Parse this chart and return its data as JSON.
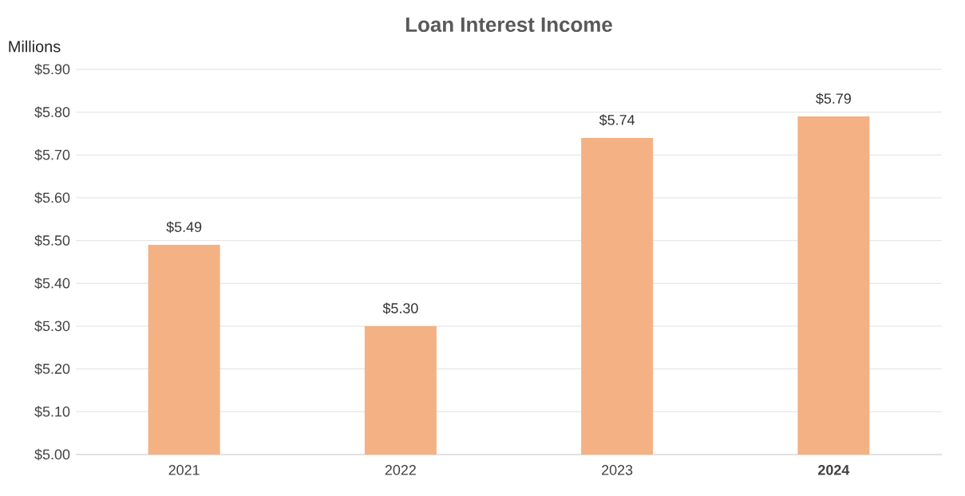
{
  "chart_data": {
    "type": "bar",
    "title": "Loan Interest Income",
    "ylabel": "Millions",
    "categories": [
      "2021",
      "2022",
      "2023",
      "**2024**"
    ],
    "values": [
      5.49,
      5.3,
      5.74,
      5.79
    ],
    "value_labels": [
      "$5.49",
      "$5.30",
      "$5.74",
      "$5.79"
    ],
    "color": "#f4b183",
    "ylim": [
      5.0,
      5.9
    ],
    "yticks": [
      {
        "value": 5.0,
        "label": "$5.00"
      },
      {
        "value": 5.1,
        "label": "$5.10"
      },
      {
        "value": 5.2,
        "label": "$5.20"
      },
      {
        "value": 5.3,
        "label": "$5.30"
      },
      {
        "value": 5.4,
        "label": "$5.40"
      },
      {
        "value": 5.5,
        "label": "$5.50"
      },
      {
        "value": 5.6,
        "label": "$5.60"
      },
      {
        "value": 5.7,
        "label": "$5.70"
      },
      {
        "value": 5.8,
        "label": "$5.80"
      },
      {
        "value": 5.9,
        "label": "$5.90"
      }
    ],
    "grid": "y"
  }
}
